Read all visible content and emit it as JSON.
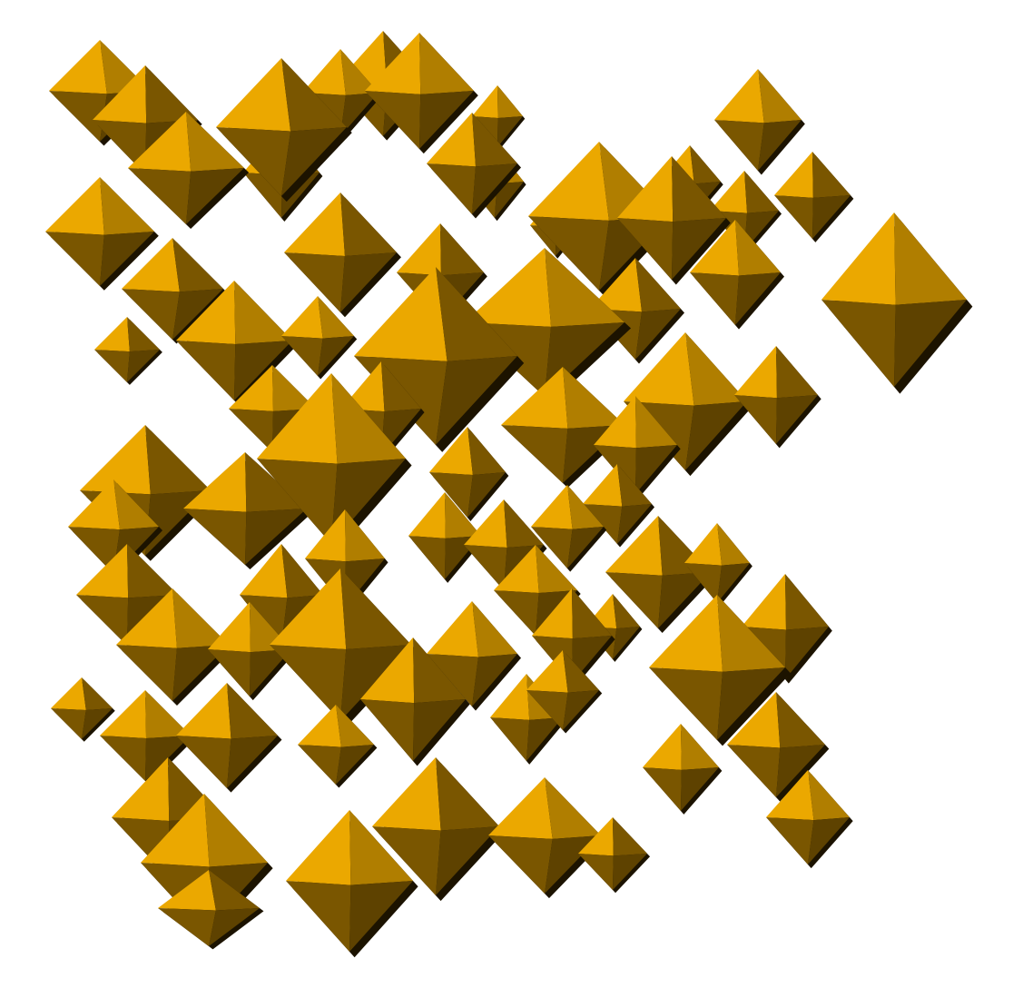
{
  "scene": {
    "subject": "octahedra",
    "colors": {
      "light": "#EBA800",
      "mid": "#B07E00",
      "dark": "#7A5600",
      "darker": "#5E4200",
      "shadow": "#1C1300",
      "background": "#FFFFFF"
    }
  }
}
